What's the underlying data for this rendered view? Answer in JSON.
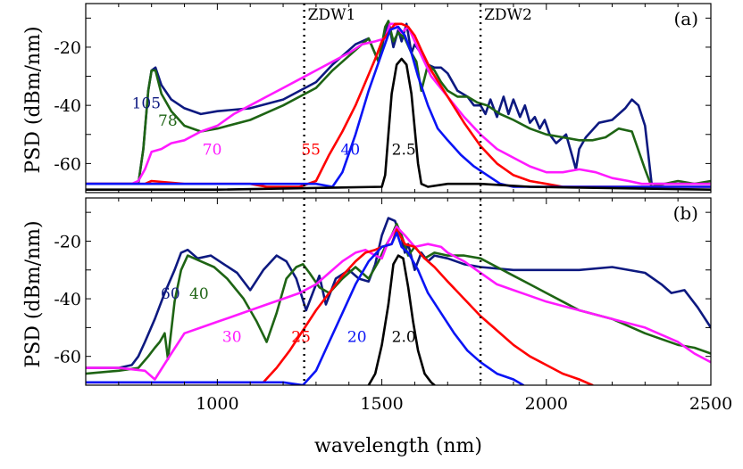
{
  "chart_data": [
    {
      "panel": "(a)",
      "type": "line",
      "xlabel": "",
      "ylabel": "PSD (dBm/nm)",
      "xlim": [
        600,
        2500
      ],
      "ylim": [
        -70,
        -5
      ],
      "yticks": [
        -20,
        -40,
        -60
      ],
      "vlines": [
        {
          "x": 1264,
          "label": "ZDW1"
        },
        {
          "x": 1800,
          "label": "ZDW2"
        }
      ],
      "series": [
        {
          "name": "105",
          "color": "#0d1980",
          "x": [
            600,
            700,
            760,
            775,
            790,
            800,
            812,
            830,
            860,
            900,
            950,
            1000,
            1100,
            1200,
            1300,
            1350,
            1420,
            1460,
            1490,
            1510,
            1520,
            1535,
            1550,
            1560,
            1575,
            1590,
            1600,
            1625,
            1640,
            1660,
            1680,
            1700,
            1730,
            1760,
            1780,
            1800,
            1815,
            1830,
            1850,
            1870,
            1885,
            1900,
            1920,
            1935,
            1950,
            1965,
            1980,
            1995,
            2010,
            2030,
            2060,
            2080,
            2090,
            2100,
            2120,
            2160,
            2200,
            2240,
            2260,
            2280,
            2300,
            2320,
            2340,
            2400,
            2500
          ],
          "y": [
            -67,
            -67,
            -67,
            -55,
            -35,
            -28,
            -27,
            -33,
            -38,
            -41,
            -43,
            -42,
            -41,
            -38,
            -32,
            -26,
            -19,
            -17,
            -25,
            -15,
            -11,
            -20,
            -14,
            -18,
            -12,
            -22,
            -19,
            -23,
            -26,
            -27,
            -27,
            -29,
            -35,
            -37,
            -40,
            -40,
            -43,
            -38,
            -44,
            -37,
            -43,
            -38,
            -44,
            -40,
            -46,
            -44,
            -48,
            -45,
            -50,
            -53,
            -50,
            -58,
            -62,
            -55,
            -51,
            -46,
            -45,
            -41,
            -38,
            -40,
            -47,
            -67,
            -67,
            -67,
            -67
          ]
        },
        {
          "name": "78",
          "color": "#1e6414",
          "x": [
            600,
            700,
            760,
            775,
            790,
            800,
            812,
            830,
            860,
            900,
            950,
            1000,
            1100,
            1200,
            1300,
            1350,
            1420,
            1460,
            1490,
            1510,
            1520,
            1535,
            1550,
            1570,
            1590,
            1605,
            1620,
            1640,
            1660,
            1680,
            1700,
            1730,
            1760,
            1790,
            1820,
            1860,
            1900,
            1950,
            2000,
            2050,
            2100,
            2140,
            2180,
            2220,
            2260,
            2300,
            2320,
            2360,
            2400,
            2450,
            2500
          ],
          "y": [
            -67,
            -67,
            -67,
            -55,
            -35,
            -28,
            -28,
            -36,
            -42,
            -47,
            -49,
            -48,
            -45,
            -40,
            -34,
            -28,
            -21,
            -17,
            -25,
            -13,
            -11,
            -18,
            -15,
            -17,
            -22,
            -25,
            -35,
            -26,
            -28,
            -32,
            -35,
            -37,
            -37,
            -39,
            -40,
            -43,
            -45,
            -48,
            -50,
            -51,
            -52,
            -52,
            -51,
            -48,
            -49,
            -62,
            -68,
            -67,
            -66,
            -67,
            -66
          ]
        },
        {
          "name": "70",
          "color": "#ff1aff",
          "x": [
            600,
            740,
            760,
            780,
            800,
            830,
            860,
            900,
            950,
            1000,
            1050,
            1100,
            1150,
            1200,
            1250,
            1300,
            1350,
            1400,
            1440,
            1480,
            1510,
            1525,
            1540,
            1560,
            1580,
            1600,
            1625,
            1650,
            1700,
            1750,
            1800,
            1850,
            1900,
            1950,
            2000,
            2050,
            2100,
            2150,
            2200,
            2250,
            2290,
            2310,
            2500
          ],
          "y": [
            -67,
            -67,
            -66,
            -62,
            -56,
            -55,
            -53,
            -52,
            -49,
            -47,
            -43,
            -40,
            -37,
            -34,
            -31,
            -28,
            -25,
            -22,
            -19,
            -18,
            -17,
            -12,
            -12,
            -15,
            -13,
            -18,
            -24,
            -30,
            -37,
            -44,
            -50,
            -55,
            -58,
            -61,
            -63,
            -63,
            -62,
            -63,
            -65,
            -66,
            -67,
            -67,
            -67
          ]
        },
        {
          "name": "55",
          "color": "#ff0000",
          "x": [
            600,
            700,
            780,
            800,
            900,
            1000,
            1100,
            1150,
            1200,
            1250,
            1300,
            1340,
            1380,
            1420,
            1450,
            1480,
            1500,
            1520,
            1540,
            1560,
            1580,
            1600,
            1620,
            1650,
            1700,
            1750,
            1800,
            1850,
            1900,
            1950,
            2000,
            2050,
            2100,
            2150,
            2500
          ],
          "y": [
            -67,
            -67,
            -67,
            -66,
            -67,
            -67,
            -67,
            -68,
            -68,
            -68,
            -66,
            -57,
            -49,
            -40,
            -32,
            -24,
            -18,
            -15,
            -12,
            -12,
            -13,
            -16,
            -21,
            -28,
            -37,
            -46,
            -54,
            -60,
            -64,
            -66,
            -67,
            -68,
            -68,
            -68,
            -68
          ]
        },
        {
          "name": "40",
          "color": "#0a14f5",
          "x": [
            600,
            800,
            1000,
            1200,
            1300,
            1350,
            1380,
            1420,
            1460,
            1500,
            1525,
            1550,
            1570,
            1590,
            1610,
            1640,
            1670,
            1700,
            1740,
            1780,
            1820,
            1860,
            1900,
            1950,
            2500
          ],
          "y": [
            -67,
            -67,
            -67,
            -67,
            -67,
            -68,
            -63,
            -50,
            -35,
            -22,
            -14,
            -13,
            -16,
            -22,
            -30,
            -40,
            -48,
            -52,
            -57,
            -61,
            -64,
            -67,
            -68,
            -68,
            -68
          ]
        },
        {
          "name": "2.5",
          "color": "#000000",
          "x": [
            600,
            1000,
            1500,
            1510,
            1520,
            1530,
            1545,
            1560,
            1575,
            1590,
            1600,
            1610,
            1620,
            1640,
            1700,
            1800,
            1950,
            2500
          ],
          "y": [
            -69,
            -69,
            -68,
            -64,
            -50,
            -36,
            -26,
            -24,
            -26,
            -36,
            -48,
            -60,
            -67,
            -68,
            -67,
            -67,
            -68,
            -69
          ]
        }
      ],
      "annotations": [
        {
          "text": "105",
          "series": "105",
          "x": 740,
          "y": -41
        },
        {
          "text": "78",
          "series": "78",
          "x": 820,
          "y": -47
        },
        {
          "text": "70",
          "series": "70",
          "x": 955,
          "y": -57
        },
        {
          "text": "55",
          "series": "55",
          "x": 1255,
          "y": -57
        },
        {
          "text": "40",
          "series": "40",
          "x": 1375,
          "y": -57
        },
        {
          "text": "2.5",
          "series": "2.5",
          "x": 1530,
          "y": -57
        }
      ]
    },
    {
      "panel": "(b)",
      "type": "line",
      "xlabel": "wavelength (nm)",
      "ylabel": "PSD (dBm/nm)",
      "xlim": [
        600,
        2500
      ],
      "ylim": [
        -70,
        -5
      ],
      "xticks": [
        1000,
        1500,
        2000,
        2500
      ],
      "yticks": [
        -20,
        -40,
        -60
      ],
      "vlines": [
        {
          "x": 1264,
          "label": ""
        },
        {
          "x": 1800,
          "label": ""
        }
      ],
      "series": [
        {
          "name": "60",
          "color": "#0d1980",
          "x": [
            600,
            700,
            740,
            760,
            780,
            810,
            840,
            870,
            890,
            910,
            940,
            980,
            1020,
            1060,
            1100,
            1140,
            1180,
            1210,
            1240,
            1270,
            1290,
            1310,
            1330,
            1360,
            1400,
            1430,
            1460,
            1480,
            1500,
            1520,
            1540,
            1560,
            1570,
            1580,
            1600,
            1620,
            1640,
            1660,
            1700,
            1750,
            1800,
            1900,
            2000,
            2100,
            2200,
            2300,
            2350,
            2380,
            2420,
            2460,
            2500
          ],
          "y": [
            -64,
            -64,
            -63,
            -60,
            -55,
            -47,
            -38,
            -30,
            -24,
            -23,
            -26,
            -25,
            -28,
            -31,
            -37,
            -30,
            -25,
            -27,
            -33,
            -44,
            -38,
            -32,
            -42,
            -33,
            -30,
            -33,
            -34,
            -28,
            -18,
            -12,
            -13,
            -19,
            -24,
            -21,
            -30,
            -24,
            -27,
            -25,
            -26,
            -28,
            -29,
            -30,
            -30,
            -30,
            -29,
            -31,
            -35,
            -38,
            -37,
            -43,
            -50
          ]
        },
        {
          "name": "40",
          "color": "#1e6414",
          "x": [
            600,
            700,
            760,
            790,
            810,
            825,
            840,
            850,
            870,
            890,
            910,
            950,
            990,
            1030,
            1080,
            1120,
            1150,
            1180,
            1210,
            1240,
            1260,
            1280,
            1310,
            1340,
            1380,
            1420,
            1460,
            1490,
            1510,
            1530,
            1545,
            1560,
            1580,
            1600,
            1630,
            1660,
            1700,
            1750,
            1800,
            1850,
            1900,
            1950,
            2000,
            2050,
            2100,
            2200,
            2300,
            2350,
            2400,
            2450,
            2500
          ],
          "y": [
            -66,
            -65,
            -64,
            -60,
            -57,
            -55,
            -52,
            -61,
            -41,
            -30,
            -25,
            -27,
            -29,
            -33,
            -40,
            -48,
            -55,
            -45,
            -33,
            -29,
            -28,
            -31,
            -36,
            -38,
            -33,
            -29,
            -33,
            -27,
            -22,
            -18,
            -14,
            -18,
            -25,
            -22,
            -26,
            -24,
            -25,
            -25,
            -26,
            -29,
            -32,
            -35,
            -38,
            -41,
            -44,
            -47,
            -52,
            -54,
            -56,
            -57,
            -59
          ]
        },
        {
          "name": "30",
          "color": "#ff1aff",
          "x": [
            600,
            700,
            780,
            810,
            860,
            900,
            950,
            1000,
            1050,
            1100,
            1150,
            1200,
            1250,
            1300,
            1340,
            1380,
            1420,
            1450,
            1480,
            1500,
            1520,
            1545,
            1570,
            1600,
            1640,
            1680,
            1700,
            1750,
            1800,
            1850,
            1900,
            1950,
            2000,
            2100,
            2200,
            2300,
            2400,
            2450,
            2500
          ],
          "y": [
            -64,
            -64,
            -65,
            -68,
            -59,
            -52,
            -50,
            -48,
            -46,
            -44,
            -42,
            -40,
            -38,
            -35,
            -31,
            -27,
            -24,
            -23,
            -25,
            -26,
            -20,
            -15,
            -18,
            -22,
            -21,
            -22,
            -24,
            -27,
            -31,
            -35,
            -37,
            -39,
            -41,
            -44,
            -47,
            -50,
            -55,
            -59,
            -62
          ]
        },
        {
          "name": "25",
          "color": "#ff0000",
          "x": [
            600,
            700,
            800,
            900,
            1000,
            1100,
            1140,
            1180,
            1220,
            1260,
            1300,
            1340,
            1380,
            1420,
            1450,
            1480,
            1500,
            1530,
            1545,
            1570,
            1600,
            1630,
            1660,
            1700,
            1750,
            1800,
            1850,
            1900,
            1950,
            2000,
            2050,
            2100,
            2140
          ],
          "y": [
            -69,
            -69,
            -69,
            -69,
            -69,
            -69,
            -69,
            -64,
            -58,
            -51,
            -44,
            -38,
            -32,
            -27,
            -24,
            -23,
            -22,
            -21,
            -16,
            -21,
            -22,
            -26,
            -29,
            -34,
            -40,
            -46,
            -51,
            -56,
            -60,
            -63,
            -66,
            -68,
            -70
          ]
        },
        {
          "name": "20",
          "color": "#0a14f5",
          "x": [
            600,
            800,
            1000,
            1200,
            1260,
            1300,
            1340,
            1380,
            1420,
            1460,
            1500,
            1530,
            1545,
            1560,
            1580,
            1610,
            1640,
            1680,
            1720,
            1760,
            1800,
            1850,
            1900,
            1930
          ],
          "y": [
            -69,
            -69,
            -69,
            -69,
            -70,
            -65,
            -55,
            -45,
            -35,
            -27,
            -22,
            -21,
            -17,
            -22,
            -24,
            -30,
            -38,
            -45,
            -52,
            -58,
            -62,
            -66,
            -68,
            -70
          ]
        },
        {
          "name": "2.0",
          "color": "#000000",
          "x": [
            1460,
            1480,
            1500,
            1520,
            1535,
            1550,
            1565,
            1580,
            1595,
            1610,
            1630,
            1650,
            1660
          ],
          "y": [
            -70,
            -66,
            -56,
            -42,
            -28,
            -25,
            -26,
            -36,
            -48,
            -58,
            -66,
            -69,
            -70
          ]
        }
      ],
      "annotations": [
        {
          "text": "60",
          "series": "60",
          "x": 828,
          "y": -40
        },
        {
          "text": "40",
          "series": "40",
          "x": 915,
          "y": -40
        },
        {
          "text": "30",
          "series": "30",
          "x": 1015,
          "y": -55
        },
        {
          "text": "25",
          "series": "25",
          "x": 1225,
          "y": -55
        },
        {
          "text": "20",
          "series": "20",
          "x": 1395,
          "y": -55
        },
        {
          "text": "2.0",
          "series": "2.0",
          "x": 1530,
          "y": -55
        }
      ]
    }
  ]
}
